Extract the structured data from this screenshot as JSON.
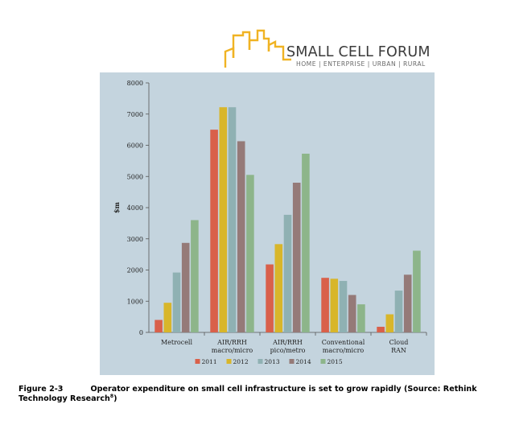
{
  "logo": {
    "name": "SMALL CELL FORUM",
    "tagline": "HOME | ENTERPRISE | URBAN | RURAL"
  },
  "chart_data": {
    "type": "bar",
    "title": "",
    "xlabel": "",
    "ylabel": "$m",
    "ylim": [
      0,
      8000
    ],
    "yticks": [
      "0",
      "1000",
      "2000",
      "3000",
      "4000",
      "5000",
      "6000",
      "7000",
      "8000"
    ],
    "categories": [
      "Metrocell",
      "AIR/RRH macro/micro",
      "AIR/RRH pico/metro",
      "Conventional macro/micro",
      "Cloud RAN"
    ],
    "series": [
      {
        "name": "2011",
        "color": "#d9604a",
        "values": [
          400,
          6500,
          2180,
          1750,
          180
        ]
      },
      {
        "name": "2012",
        "color": "#d8b62a",
        "values": [
          950,
          7220,
          2830,
          1720,
          580
        ]
      },
      {
        "name": "2013",
        "color": "#8fb1b3",
        "values": [
          1920,
          7220,
          3770,
          1650,
          1340
        ]
      },
      {
        "name": "2014",
        "color": "#957a78",
        "values": [
          2870,
          6130,
          4800,
          1200,
          1850
        ]
      },
      {
        "name": "2015",
        "color": "#8db58a",
        "values": [
          3600,
          5050,
          5730,
          900,
          2620
        ]
      }
    ],
    "legend_position": "bottom",
    "grid": false,
    "background": "#c4d4de"
  },
  "caption": {
    "figure_label": "Figure 2-3",
    "text": "Operator expenditure on small cell infrastructure is set to grow rapidly (Source: Rethink Technology Research",
    "footnote": "8",
    "close": ")"
  }
}
